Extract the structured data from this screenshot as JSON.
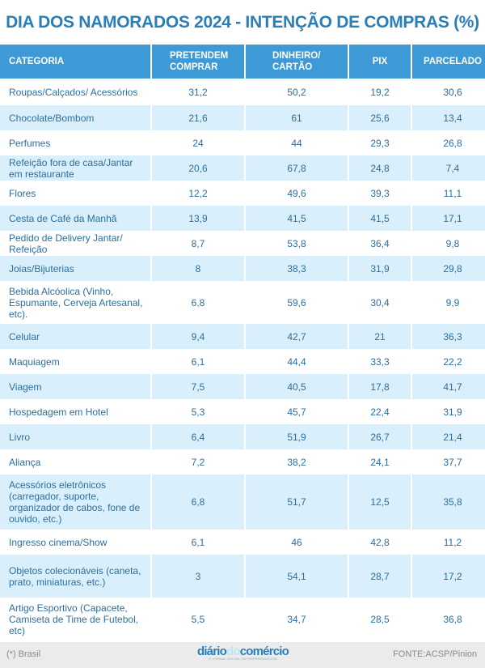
{
  "title": "DIA DOS NAMORADOS 2024 - INTENÇÃO DE COMPRAS (%)",
  "table": {
    "headers": [
      {
        "line1": "CATEGORIA",
        "line2": ""
      },
      {
        "line1": "PRETENDEM",
        "line2": "COMPRAR"
      },
      {
        "line1": "DINHEIRO/",
        "line2": "CARTÃO"
      },
      {
        "line1": "PIX",
        "line2": ""
      },
      {
        "line1": "PARCELADO",
        "line2": ""
      }
    ],
    "rows": [
      {
        "category": "Roupas/Calçados/ Acessórios",
        "pretendem": "31,2",
        "dinheiro_cartao": "50,2",
        "pix": "19,2",
        "parcelado": "30,6"
      },
      {
        "category": "Chocolate/Bombom",
        "pretendem": "21,6",
        "dinheiro_cartao": "61",
        "pix": "25,6",
        "parcelado": "13,4"
      },
      {
        "category": "Perfumes",
        "pretendem": "24",
        "dinheiro_cartao": "44",
        "pix": "29,3",
        "parcelado": "26,8"
      },
      {
        "category": "Refeição fora de casa/Jantar em restaurante",
        "pretendem": "20,6",
        "dinheiro_cartao": "67,8",
        "pix": "24,8",
        "parcelado": "7,4"
      },
      {
        "category": "Flores",
        "pretendem": "12,2",
        "dinheiro_cartao": "49,6",
        "pix": "39,3",
        "parcelado": "11,1"
      },
      {
        "category": "Cesta de Café da Manhã",
        "pretendem": "13,9",
        "dinheiro_cartao": "41,5",
        "pix": "41,5",
        "parcelado": "17,1"
      },
      {
        "category": "Pedido de Delivery Jantar/ Refeição",
        "pretendem": "8,7",
        "dinheiro_cartao": "53,8",
        "pix": "36,4",
        "parcelado": "9,8"
      },
      {
        "category": "Joias/Bijuterias",
        "pretendem": "8",
        "dinheiro_cartao": "38,3",
        "pix": "31,9",
        "parcelado": "29,8"
      },
      {
        "category": "Bebida Alcóolica (Vinho, Espumante, Cerveja Artesanal, etc).",
        "pretendem": "6,8",
        "dinheiro_cartao": "59,6",
        "pix": "30,4",
        "parcelado": "9,9"
      },
      {
        "category": "Celular",
        "pretendem": "9,4",
        "dinheiro_cartao": "42,7",
        "pix": "21",
        "parcelado": "36,3"
      },
      {
        "category": "Maquiagem",
        "pretendem": "6,1",
        "dinheiro_cartao": "44,4",
        "pix": "33,3",
        "parcelado": "22,2"
      },
      {
        "category": "Viagem",
        "pretendem": "7,5",
        "dinheiro_cartao": "40,5",
        "pix": "17,8",
        "parcelado": "41,7"
      },
      {
        "category": "Hospedagem em Hotel",
        "pretendem": "5,3",
        "dinheiro_cartao": "45,7",
        "pix": "22,4",
        "parcelado": "31,9"
      },
      {
        "category": "Livro",
        "pretendem": "6,4",
        "dinheiro_cartao": "51,9",
        "pix": "26,7",
        "parcelado": "21,4"
      },
      {
        "category": "Aliança",
        "pretendem": "7,2",
        "dinheiro_cartao": "38,2",
        "pix": "24,1",
        "parcelado": "37,7"
      },
      {
        "category": "Acessórios eletrônicos (carregador, suporte, organizador de cabos, fone de ouvido, etc.)",
        "pretendem": "6,8",
        "dinheiro_cartao": "51,7",
        "pix": "12,5",
        "parcelado": "35,8"
      },
      {
        "category": "Ingresso cinema/Show",
        "pretendem": "6,1",
        "dinheiro_cartao": "46",
        "pix": "42,8",
        "parcelado": "11,2"
      },
      {
        "category": "Objetos colecionáveis (caneta, prato, miniaturas, etc.)",
        "pretendem": "3",
        "dinheiro_cartao": "54,1",
        "pix": "28,7",
        "parcelado": "17,2"
      },
      {
        "category": "Artigo Esportivo (Capacete, Camiseta de Time de Futebol, etc)",
        "pretendem": "5,5",
        "dinheiro_cartao": "34,7",
        "pix": "28,5",
        "parcelado": "36,8"
      }
    ]
  },
  "footer": {
    "note": "(*) Brasil",
    "logo_part1": "diário",
    "logo_part2": "do",
    "logo_part3": "comércio",
    "logo_tagline": "O JORNAL DIGITAL DO EMPREENDEDOR",
    "source": "FONTE:ACSP/Pinion"
  },
  "colors": {
    "title": "#2a7fb8",
    "header_bg": "#3d9ad6",
    "alt_row_bg": "#d9f0fc",
    "cell_text": "#2c6e9e",
    "footer_bg": "#ebebeb"
  }
}
